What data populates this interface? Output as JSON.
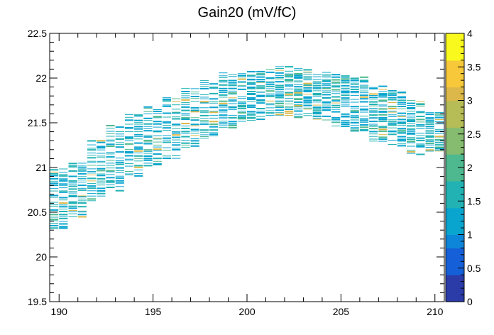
{
  "chart_data": {
    "type": "heatmap",
    "title": "Gain20 (mV/fC)",
    "xlabel": "",
    "ylabel": "",
    "xlim": [
      189.5,
      210.5
    ],
    "ylim": [
      19.5,
      22.5
    ],
    "x_ticks": [
      190,
      195,
      200,
      205,
      210
    ],
    "y_ticks": [
      19.5,
      20,
      20.5,
      21,
      21.5,
      22,
      22.5
    ],
    "z_range": [
      0,
      4
    ],
    "z_ticks": [
      0,
      0.5,
      1,
      1.5,
      2,
      2.5,
      3,
      3.5,
      4
    ],
    "colormap": [
      "#2b3ba8",
      "#1560d8",
      "#0d85d8",
      "#0aa5cf",
      "#22b2b4",
      "#4eb98f",
      "#86bc6f",
      "#b7bd56",
      "#dcb84a",
      "#f6c83a",
      "#f9f91e"
    ],
    "grid": false,
    "columns": [
      {
        "x": 190,
        "center": 20.65,
        "spread": 0.33
      },
      {
        "x": 191,
        "center": 20.75,
        "spread": 0.3
      },
      {
        "x": 192,
        "center": 20.95,
        "spread": 0.35
      },
      {
        "x": 193,
        "center": 21.1,
        "spread": 0.36
      },
      {
        "x": 194,
        "center": 21.25,
        "spread": 0.34
      },
      {
        "x": 195,
        "center": 21.35,
        "spread": 0.33
      },
      {
        "x": 196,
        "center": 21.45,
        "spread": 0.34
      },
      {
        "x": 197,
        "center": 21.55,
        "spread": 0.33
      },
      {
        "x": 198,
        "center": 21.65,
        "spread": 0.33
      },
      {
        "x": 199,
        "center": 21.75,
        "spread": 0.3
      },
      {
        "x": 200,
        "center": 21.8,
        "spread": 0.28
      },
      {
        "x": 201,
        "center": 21.82,
        "spread": 0.28
      },
      {
        "x": 202,
        "center": 21.85,
        "spread": 0.27
      },
      {
        "x": 203,
        "center": 21.83,
        "spread": 0.27
      },
      {
        "x": 204,
        "center": 21.8,
        "spread": 0.27
      },
      {
        "x": 205,
        "center": 21.75,
        "spread": 0.28
      },
      {
        "x": 206,
        "center": 21.7,
        "spread": 0.3
      },
      {
        "x": 207,
        "center": 21.6,
        "spread": 0.3
      },
      {
        "x": 208,
        "center": 21.55,
        "spread": 0.3
      },
      {
        "x": 209,
        "center": 21.45,
        "spread": 0.3
      },
      {
        "x": 210,
        "center": 21.4,
        "spread": 0.22
      }
    ]
  }
}
